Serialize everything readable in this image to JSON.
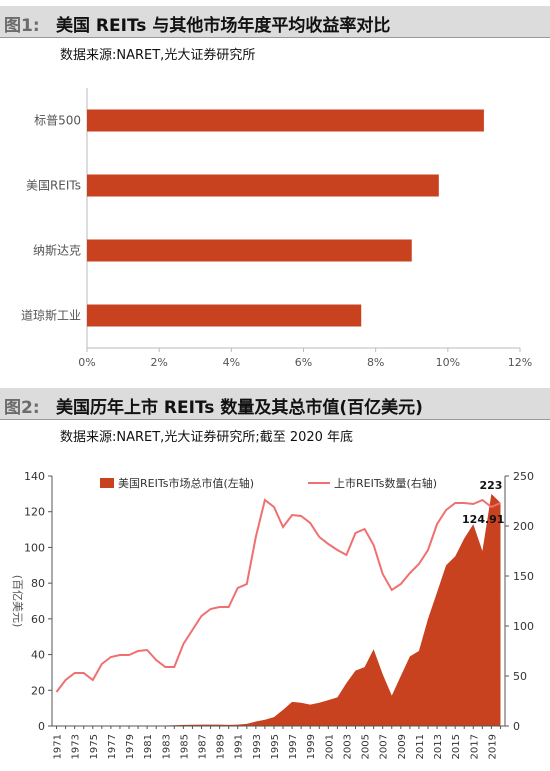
{
  "figure1": {
    "number": "图1:",
    "title": "美国 REITs 与其他市场年度平均收益率对比",
    "source": "数据来源:NARET,光大证券研究所"
  },
  "figure2": {
    "number": "图2:",
    "title": "美国历年上市 REITs 数量及其总市值(百亿美元)",
    "source": "数据来源:NARET,光大证券研究所;截至 2020 年底"
  },
  "chart_data": [
    {
      "type": "bar",
      "orientation": "horizontal",
      "categories": [
        "标普500",
        "美国REITs",
        "纳斯达克",
        "道琼斯工业"
      ],
      "values": [
        11.0,
        9.75,
        9.0,
        7.6
      ],
      "xlim": [
        0,
        12
      ],
      "xticks": [
        "0%",
        "2%",
        "4%",
        "6%",
        "8%",
        "10%",
        "12%"
      ],
      "color": "#c8421f",
      "grid": false
    },
    {
      "type": "bar+line",
      "x_labels": [
        "1971",
        "1973",
        "1975",
        "1977",
        "1979",
        "1981",
        "1983",
        "1985",
        "1987",
        "1989",
        "1991",
        "1993",
        "1995",
        "1997",
        "1999",
        "2001",
        "2003",
        "2005",
        "2007",
        "2009",
        "2011",
        "2013",
        "2015",
        "2017",
        "2019"
      ],
      "years": [
        1971,
        1972,
        1973,
        1974,
        1975,
        1976,
        1977,
        1978,
        1979,
        1980,
        1981,
        1982,
        1983,
        1984,
        1985,
        1986,
        1987,
        1988,
        1989,
        1990,
        1991,
        1992,
        1993,
        1994,
        1995,
        1996,
        1997,
        1998,
        1999,
        2000,
        2001,
        2002,
        2003,
        2004,
        2005,
        2006,
        2007,
        2008,
        2009,
        2010,
        2011,
        2012,
        2013,
        2014,
        2015,
        2016,
        2017,
        2018,
        2019,
        2020
      ],
      "series": [
        {
          "name": "美国REITs市场总市值(左轴)",
          "type": "area",
          "axis": "left",
          "color": "#c8421f",
          "values": [
            0.15,
            0.2,
            0.15,
            0.1,
            0.1,
            0.1,
            0.1,
            0.1,
            0.15,
            0.2,
            0.2,
            0.3,
            0.3,
            0.4,
            0.6,
            0.7,
            0.8,
            0.8,
            0.8,
            0.6,
            0.8,
            1.2,
            2.5,
            3.5,
            5.0,
            9.0,
            13.5,
            13.0,
            12.0,
            13.0,
            14.5,
            16.0,
            24.0,
            31.0,
            33.0,
            43.0,
            29.0,
            17.0,
            28.0,
            39.0,
            42.0,
            60.0,
            75.0,
            90.0,
            95.0,
            105.0,
            113.0,
            98.0,
            130.0,
            124.91
          ]
        },
        {
          "name": "上市REITs数量(右轴)",
          "type": "line",
          "axis": "right",
          "color": "#f07070",
          "values": [
            34,
            46,
            53,
            53,
            46,
            62,
            69,
            71,
            71,
            75,
            76,
            66,
            59,
            59,
            82,
            96,
            110,
            117,
            119,
            119,
            138,
            142,
            189,
            226,
            219,
            199,
            211,
            210,
            203,
            189,
            182,
            176,
            171,
            193,
            197,
            181,
            152,
            136,
            142,
            153,
            162,
            176,
            202,
            216,
            223,
            223,
            222,
            226,
            219,
            223
          ]
        }
      ],
      "annotations": [
        "223",
        "124.91"
      ],
      "ylim_left": [
        0,
        140
      ],
      "ylim_right": [
        0,
        250
      ],
      "yticks_left": [
        "0",
        "20",
        "40",
        "60",
        "80",
        "100",
        "120",
        "140"
      ],
      "yticks_right": [
        "0",
        "50",
        "100",
        "150",
        "200",
        "250"
      ],
      "ylabel_left": "(百亿美元)"
    }
  ]
}
